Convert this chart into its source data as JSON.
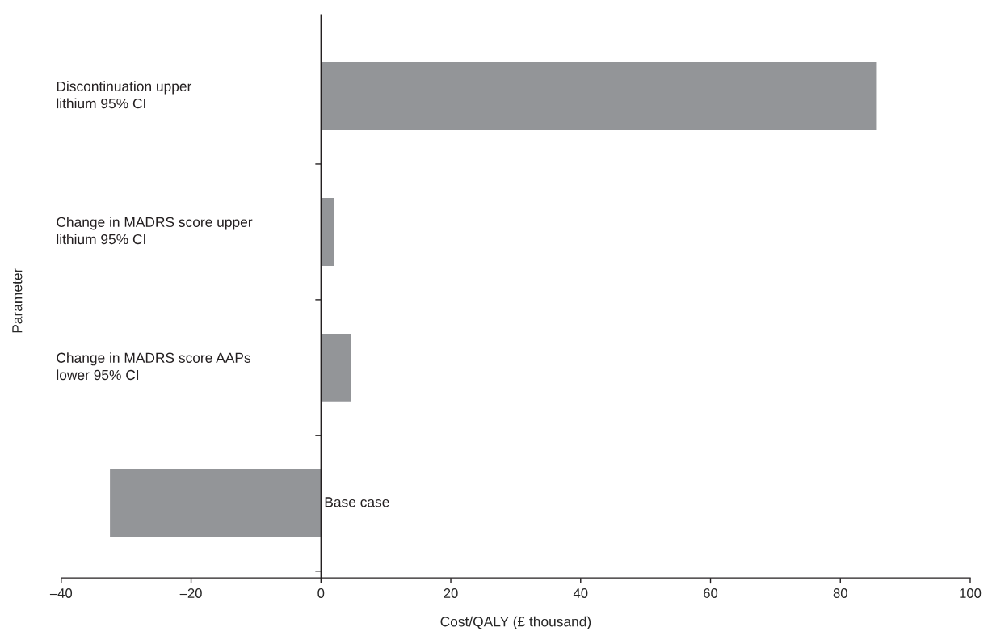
{
  "chart_data": {
    "type": "bar",
    "orientation": "horizontal",
    "categories": [
      "Discontinuation upper\nlithium 95% CI",
      "Change in MADRS score upper\nlithium 95% CI",
      "Change in MADRS score AAPs\nlower 95% CI",
      "Base case"
    ],
    "values": [
      85.5,
      2,
      4.6,
      -32.5
    ],
    "color": "#939598",
    "xlim": [
      -40,
      100
    ],
    "xticks": [
      {
        "value": -40,
        "label": "–40"
      },
      {
        "value": -20,
        "label": "–20"
      },
      0,
      20,
      40,
      60,
      80,
      100
    ],
    "xlabel": "Cost/QALY (£ thousand)",
    "ylabel": "Parameter"
  }
}
